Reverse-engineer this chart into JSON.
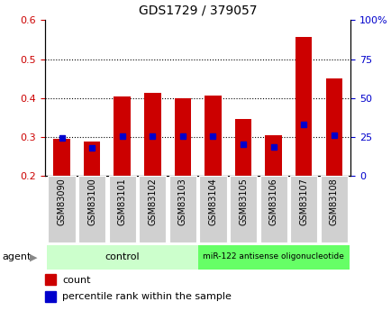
{
  "title": "GDS1729 / 379057",
  "samples": [
    "GSM83090",
    "GSM83100",
    "GSM83101",
    "GSM83102",
    "GSM83103",
    "GSM83104",
    "GSM83105",
    "GSM83106",
    "GSM83107",
    "GSM83108"
  ],
  "red_values": [
    0.295,
    0.287,
    0.403,
    0.413,
    0.4,
    0.407,
    0.346,
    0.305,
    0.556,
    0.45
  ],
  "blue_values": [
    0.297,
    0.271,
    0.302,
    0.302,
    0.302,
    0.302,
    0.282,
    0.275,
    0.333,
    0.305
  ],
  "ylim_left": [
    0.2,
    0.6
  ],
  "ylim_right": [
    0,
    100
  ],
  "yticks_left": [
    0.2,
    0.3,
    0.4,
    0.5,
    0.6
  ],
  "yticks_right": [
    0,
    25,
    50,
    75,
    100
  ],
  "ytick_labels_right": [
    "0",
    "25",
    "50",
    "75",
    "100%"
  ],
  "left_color": "#cc0000",
  "right_color": "#0000cc",
  "bar_color": "#cc0000",
  "dot_color": "#0000cc",
  "control_label": "control",
  "treatment_label": "miR-122 antisense oligonucleotide",
  "agent_label": "agent",
  "legend_count": "count",
  "legend_percentile": "percentile rank within the sample",
  "control_color": "#ccffcc",
  "treatment_color": "#66ff66",
  "bar_width": 0.55,
  "base_value": 0.2,
  "n_control": 5,
  "n_treatment": 5,
  "grid_yticks": [
    0.3,
    0.4,
    0.5
  ]
}
